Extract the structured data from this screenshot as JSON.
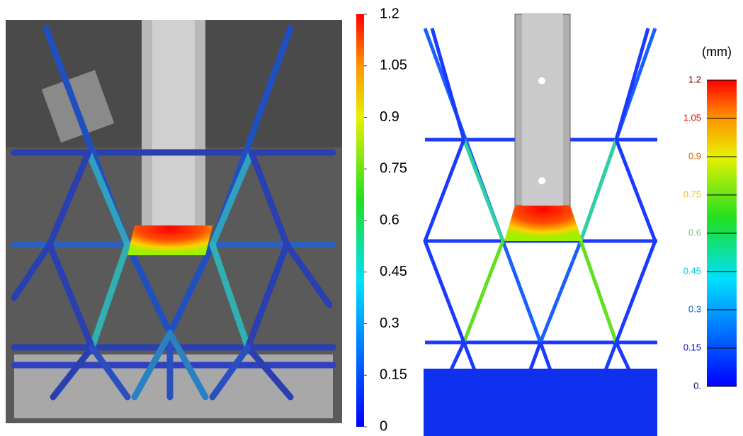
{
  "left_colorbar": {
    "lim": [
      0,
      1.2
    ],
    "ticks": [
      0,
      0.15,
      0.3,
      0.45,
      0.6,
      0.75,
      0.9,
      1.05,
      1.2
    ]
  },
  "right_colorbar": {
    "unit": "(mm)",
    "lim": [
      0,
      1.2
    ],
    "ticks": [
      {
        "value": 0,
        "label": "0."
      },
      0.15,
      0.3,
      0.45,
      0.6,
      0.75,
      0.9,
      1.05,
      1.2
    ]
  }
}
